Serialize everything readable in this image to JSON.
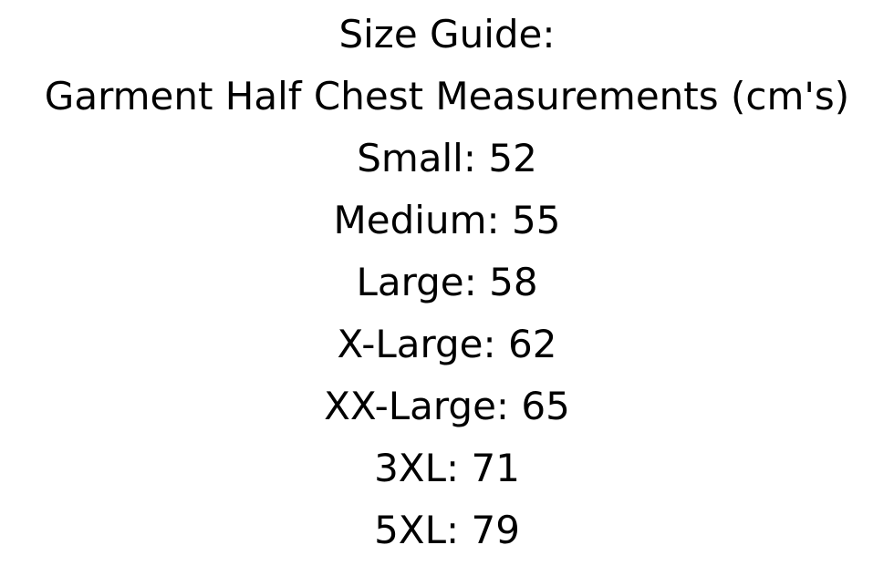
{
  "page": {
    "background_color": "#ffffff",
    "text_color": "#000000"
  },
  "size_guide": {
    "title": "Size Guide:",
    "subtitle": "Garment Half Chest Measurements (cm's)",
    "unit": "cm",
    "entries": [
      {
        "size": "Small",
        "half_chest_cm": 52,
        "line": "Small: 52"
      },
      {
        "size": "Medium",
        "half_chest_cm": 55,
        "line": "Medium: 55"
      },
      {
        "size": "Large",
        "half_chest_cm": 58,
        "line": "Large: 58"
      },
      {
        "size": "X-Large",
        "half_chest_cm": 62,
        "line": "X-Large: 62"
      },
      {
        "size": "XX-Large",
        "half_chest_cm": 65,
        "line": "XX-Large: 65"
      },
      {
        "size": "3XL",
        "half_chest_cm": 71,
        "line": "3XL: 71"
      },
      {
        "size": "5XL",
        "half_chest_cm": 79,
        "line": "5XL: 79"
      }
    ]
  }
}
